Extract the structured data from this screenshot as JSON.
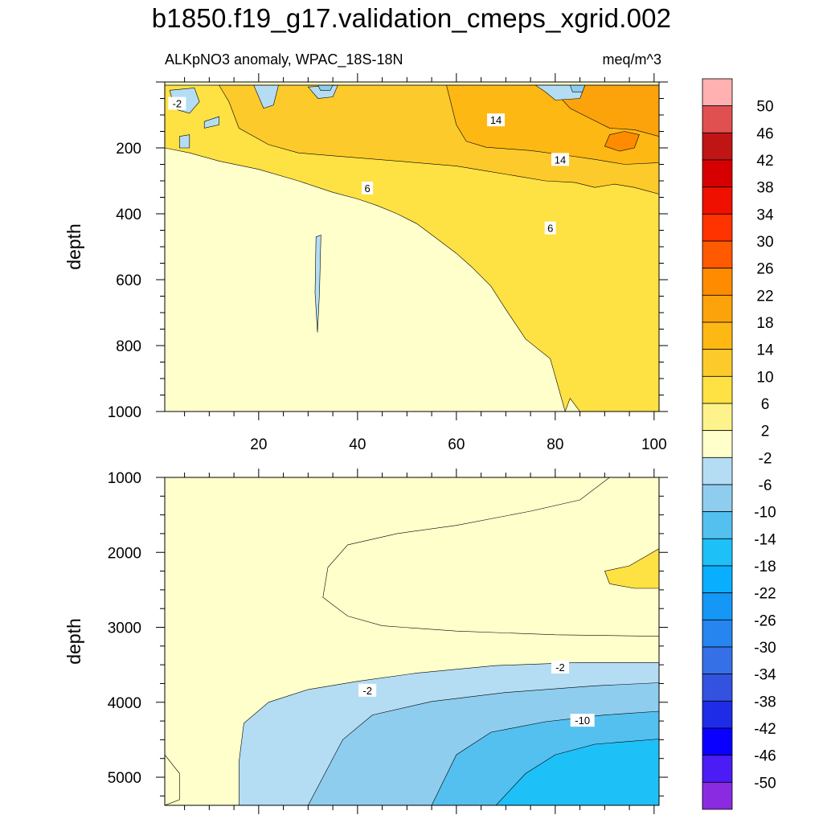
{
  "title": "b1850.f19_g17.validation_cmeps_xgrid.002",
  "subtitle_left": "ALKpNO3 anomaly, WPAC_18S-18N",
  "subtitle_right": "meq/m^3",
  "colors": {
    "palette": [
      "#8A2BE2",
      "#4B1CF5",
      "#0A00FF",
      "#1E2CE8",
      "#3452E0",
      "#3670E6",
      "#2685EE",
      "#1497F5",
      "#0AAEFF",
      "#1EC0F8",
      "#53C0F0",
      "#8ECDEE",
      "#B4DDF4",
      "#FFFFCC",
      "#FEF28D",
      "#FEE143",
      "#FDCA2C",
      "#FDB814",
      "#FCA30B",
      "#FF8C00",
      "#FF5A00",
      "#FF3300",
      "#F01000",
      "#D60000",
      "#C01515",
      "#E05050",
      "#FFB0B0"
    ]
  },
  "chart_data": [
    {
      "type": "contour",
      "panel": "upper",
      "xlim": [
        1,
        101
      ],
      "ylim": [
        1000,
        0
      ],
      "ylabel": "depth",
      "xticks": [
        20,
        40,
        60,
        80,
        100
      ],
      "yticks": [
        200,
        400,
        600,
        800,
        1000
      ],
      "contour_labels": [
        {
          "text": "-2",
          "x": 3.5,
          "y": 65
        },
        {
          "text": "14",
          "x": 68,
          "y": 115
        },
        {
          "text": "14",
          "x": 81,
          "y": 235
        },
        {
          "text": "6",
          "x": 42,
          "y": 322
        },
        {
          "text": "6",
          "x": 79,
          "y": 443
        }
      ],
      "regions": [
        {
          "level": 2,
          "points": [
            [
              1,
              10
            ],
            [
              101,
              10
            ],
            [
              101,
              1000
            ],
            [
              1,
              1000
            ]
          ]
        },
        {
          "level": 6,
          "points": [
            [
              1,
              10
            ],
            [
              101,
              10
            ],
            [
              101,
              1000
            ],
            [
              85,
              1000
            ],
            [
              83,
              960
            ],
            [
              82,
              1000
            ],
            [
              79,
              840
            ],
            [
              74,
              780
            ],
            [
              70,
              690
            ],
            [
              67,
              620
            ],
            [
              63,
              560
            ],
            [
              60,
              520
            ],
            [
              56,
              475
            ],
            [
              52,
              430
            ],
            [
              48,
              400
            ],
            [
              44,
              375
            ],
            [
              40,
              355
            ],
            [
              35,
              335
            ],
            [
              28,
              300
            ],
            [
              20,
              265
            ],
            [
              12,
              240
            ],
            [
              6,
              215
            ],
            [
              1,
              200
            ]
          ]
        },
        {
          "level": 10,
          "points": [
            [
              12,
              10
            ],
            [
              101,
              10
            ],
            [
              101,
              340
            ],
            [
              96,
              320
            ],
            [
              92,
              310
            ],
            [
              88,
              320
            ],
            [
              84,
              305
            ],
            [
              78,
              300
            ],
            [
              72,
              285
            ],
            [
              66,
              270
            ],
            [
              60,
              255
            ],
            [
              52,
              245
            ],
            [
              44,
              235
            ],
            [
              36,
              225
            ],
            [
              28,
              215
            ],
            [
              22,
              190
            ],
            [
              16,
              140
            ],
            [
              14,
              60
            ]
          ]
        },
        {
          "level": 14,
          "points": [
            [
              58,
              10
            ],
            [
              101,
              10
            ],
            [
              101,
              245
            ],
            [
              94,
              250
            ],
            [
              88,
              235
            ],
            [
              82,
              222
            ],
            [
              75,
              208
            ],
            [
              66,
              198
            ],
            [
              62,
              180
            ],
            [
              60,
              130
            ],
            [
              59,
              70
            ]
          ]
        },
        {
          "level": 18,
          "points": [
            [
              80,
              30
            ],
            [
              84,
              10
            ],
            [
              101,
              10
            ],
            [
              101,
              165
            ],
            [
              96,
              145
            ],
            [
              91,
              140
            ],
            [
              87,
              110
            ],
            [
              83,
              80
            ]
          ]
        },
        {
          "level": 22,
          "points": [
            [
              91,
              160
            ],
            [
              94,
              150
            ],
            [
              97,
              160
            ],
            [
              96,
              200
            ],
            [
              93,
              210
            ],
            [
              90,
              195
            ]
          ]
        },
        {
          "level": -2,
          "points": [
            [
              2,
              25
            ],
            [
              7,
              18
            ],
            [
              8,
              60
            ],
            [
              6,
              95
            ],
            [
              3,
              82
            ]
          ]
        },
        {
          "level": -2,
          "points": [
            [
              9,
              120
            ],
            [
              12,
              105
            ],
            [
              12,
              130
            ],
            [
              9,
              140
            ]
          ]
        },
        {
          "level": -2,
          "points": [
            [
              4,
              165
            ],
            [
              6,
              160
            ],
            [
              6,
              200
            ],
            [
              4,
              200
            ]
          ]
        },
        {
          "level": -2,
          "points": [
            [
              19,
              10
            ],
            [
              24,
              10
            ],
            [
              23,
              70
            ],
            [
              21,
              80
            ]
          ]
        },
        {
          "level": -2,
          "points": [
            [
              30,
              15
            ],
            [
              36,
              10
            ],
            [
              35,
              45
            ],
            [
              32,
              50
            ]
          ]
        },
        {
          "level": -2,
          "points": [
            [
              76,
              10
            ],
            [
              86,
              10
            ],
            [
              85,
              50
            ],
            [
              80,
              55
            ],
            [
              78,
              30
            ]
          ]
        },
        {
          "level": -2,
          "points": [
            [
              31.6,
              470
            ],
            [
              32.6,
              465
            ],
            [
              32.3,
              640
            ],
            [
              31.9,
              760
            ],
            [
              31.4,
              640
            ]
          ]
        },
        {
          "level": -6,
          "points": [
            [
              32,
              10
            ],
            [
              35,
              10
            ],
            [
              34.5,
              25
            ],
            [
              32.5,
              25
            ]
          ]
        },
        {
          "level": -6,
          "points": [
            [
              83,
              10
            ],
            [
              86,
              10
            ],
            [
              85.5,
              30
            ],
            [
              83.5,
              30
            ]
          ]
        }
      ]
    },
    {
      "type": "contour",
      "panel": "lower",
      "xlim": [
        1,
        101
      ],
      "ylim": [
        1000,
        5375
      ],
      "ylabel": "depth",
      "yticks": [
        1000,
        2000,
        3000,
        4000,
        5000
      ],
      "contour_labels": [
        {
          "text": "-2",
          "x": 42,
          "y": 3840
        },
        {
          "text": "-2",
          "x": 81,
          "y": 3530
        },
        {
          "text": "-10",
          "x": 85.5,
          "y": 4240
        }
      ],
      "regions": [
        {
          "level": -2,
          "points": [
            [
              1,
              5375
            ],
            [
              1,
              5375
            ]
          ]
        },
        {
          "level": 2,
          "points": [
            [
              1,
              1000
            ],
            [
              101,
              1000
            ],
            [
              101,
              3120
            ],
            [
              80,
              3100
            ],
            [
              60,
              3050
            ],
            [
              45,
              2980
            ],
            [
              38,
              2850
            ],
            [
              33,
              2600
            ],
            [
              34,
              2200
            ],
            [
              38,
              1900
            ],
            [
              48,
              1750
            ],
            [
              60,
              1640
            ],
            [
              75,
              1450
            ],
            [
              85,
              1300
            ],
            [
              91,
              1000
            ],
            [
              1,
              1000
            ]
          ]
        },
        {
          "level": 2,
          "points": [
            [
              1,
              4700
            ],
            [
              4,
              4950
            ],
            [
              4,
              5300
            ],
            [
              1,
              5375
            ]
          ]
        },
        {
          "level": 6,
          "points": [
            [
              101,
              1950
            ],
            [
              95,
              2180
            ],
            [
              90,
              2250
            ],
            [
              91,
              2420
            ],
            [
              96,
              2480
            ],
            [
              101,
              2480
            ]
          ]
        },
        {
          "level": -2,
          "points": [
            [
              101,
              3470
            ],
            [
              85,
              3470
            ],
            [
              68,
              3510
            ],
            [
              52,
              3610
            ],
            [
              40,
              3720
            ],
            [
              30,
              3830
            ],
            [
              22,
              4000
            ],
            [
              17,
              4280
            ],
            [
              16,
              4800
            ],
            [
              16,
              5375
            ],
            [
              101,
              5375
            ]
          ]
        },
        {
          "level": -6,
          "points": [
            [
              101,
              3740
            ],
            [
              88,
              3780
            ],
            [
              70,
              3870
            ],
            [
              55,
              3990
            ],
            [
              43,
              4170
            ],
            [
              37,
              4500
            ],
            [
              30,
              5375
            ],
            [
              101,
              5375
            ]
          ]
        },
        {
          "level": -10,
          "points": [
            [
              101,
              4120
            ],
            [
              90,
              4170
            ],
            [
              78,
              4260
            ],
            [
              67,
              4400
            ],
            [
              60,
              4700
            ],
            [
              55,
              5375
            ],
            [
              101,
              5375
            ]
          ]
        },
        {
          "level": -14,
          "points": [
            [
              101,
              4490
            ],
            [
              88,
              4560
            ],
            [
              80,
              4700
            ],
            [
              74,
              4950
            ],
            [
              68,
              5375
            ],
            [
              101,
              5375
            ]
          ]
        }
      ]
    }
  ],
  "colorbar": {
    "labels": [
      "50",
      "46",
      "42",
      "38",
      "34",
      "30",
      "26",
      "22",
      "18",
      "14",
      "10",
      "6",
      "2",
      "-2",
      "-6",
      "-10",
      "-14",
      "-18",
      "-22",
      "-26",
      "-30",
      "-34",
      "-38",
      "-42",
      "-46",
      "-50"
    ]
  }
}
